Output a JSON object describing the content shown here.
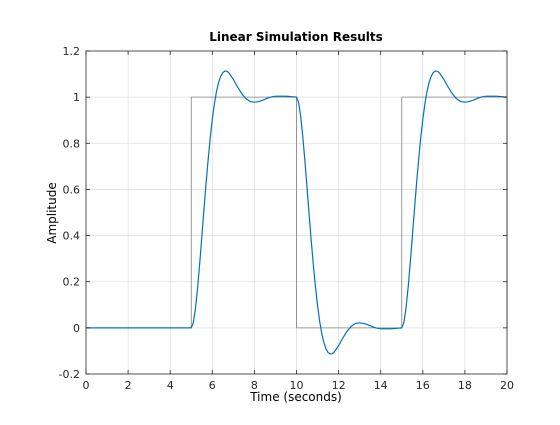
{
  "chart_data": {
    "type": "line",
    "title": "Linear Simulation Results",
    "xlabel": "Time (seconds)",
    "ylabel": "Amplitude",
    "xlim": [
      0,
      20
    ],
    "ylim": [
      -0.2,
      1.2
    ],
    "xticks": [
      0,
      2,
      4,
      6,
      8,
      10,
      12,
      14,
      16,
      18,
      20
    ],
    "yticks": [
      -0.2,
      0,
      0.2,
      0.4,
      0.6,
      0.8,
      1,
      1.2
    ],
    "xtick_labels": [
      "0",
      "2",
      "4",
      "6",
      "8",
      "10",
      "12",
      "14",
      "16",
      "18",
      "20"
    ],
    "ytick_labels": [
      "-0.2",
      "0",
      "0.2",
      "0.4",
      "0.6",
      "0.8",
      "1",
      "1.2"
    ],
    "grid": true,
    "series": [
      {
        "role": "input",
        "color": "#808080",
        "x": [
          0,
          5,
          5,
          10,
          10,
          15,
          15,
          20,
          20
        ],
        "y": [
          0,
          0,
          1,
          1,
          0,
          0,
          1,
          1,
          0
        ]
      },
      {
        "role": "response",
        "color": "#0072BD",
        "x": [
          0,
          5,
          5.1,
          5.2,
          5.3,
          5.4,
          5.5,
          5.6,
          5.7,
          5.8,
          5.9,
          6,
          6.1,
          6.2,
          6.3,
          6.4,
          6.5,
          6.6,
          6.7,
          6.8,
          7,
          7.2,
          7.4,
          7.6,
          7.8,
          8,
          8.2,
          8.4,
          8.6,
          8.8,
          9,
          9.5,
          10,
          10.1,
          10.2,
          10.3,
          10.4,
          10.5,
          10.6,
          10.7,
          10.8,
          10.9,
          11,
          11.1,
          11.2,
          11.3,
          11.4,
          11.5,
          11.6,
          11.7,
          11.8,
          12,
          12.2,
          12.4,
          12.6,
          12.8,
          13,
          13.2,
          13.4,
          13.6,
          13.8,
          14,
          14.5,
          15,
          15.1,
          15.2,
          15.3,
          15.4,
          15.5,
          15.6,
          15.7,
          15.8,
          15.9,
          16,
          16.1,
          16.2,
          16.3,
          16.4,
          16.5,
          16.6,
          16.7,
          16.8,
          17,
          17.2,
          17.4,
          17.6,
          17.8,
          18,
          18.2,
          18.4,
          18.6,
          18.8,
          19,
          19.5,
          20
        ],
        "y": [
          0,
          0,
          0.023,
          0.084,
          0.172,
          0.277,
          0.392,
          0.509,
          0.622,
          0.727,
          0.822,
          0.903,
          0.971,
          1.025,
          1.064,
          1.091,
          1.107,
          1.113,
          1.112,
          1.104,
          1.077,
          1.044,
          1.015,
          0.993,
          0.981,
          0.978,
          0.981,
          0.987,
          0.995,
          1.001,
          1.004,
          1.004,
          1,
          0.977,
          0.916,
          0.828,
          0.723,
          0.608,
          0.491,
          0.378,
          0.273,
          0.178,
          0.097,
          0.029,
          -0.025,
          -0.064,
          -0.091,
          -0.107,
          -0.113,
          -0.112,
          -0.104,
          -0.077,
          -0.044,
          -0.015,
          0.007,
          0.019,
          0.022,
          0.019,
          0.013,
          0.005,
          -0.001,
          -0.004,
          -0.004,
          0,
          0.023,
          0.084,
          0.172,
          0.277,
          0.392,
          0.509,
          0.622,
          0.727,
          0.822,
          0.903,
          0.971,
          1.025,
          1.064,
          1.091,
          1.107,
          1.113,
          1.112,
          1.104,
          1.077,
          1.044,
          1.015,
          0.993,
          0.981,
          0.978,
          0.981,
          0.987,
          0.995,
          1.001,
          1.004,
          1.004,
          1
        ]
      }
    ]
  }
}
